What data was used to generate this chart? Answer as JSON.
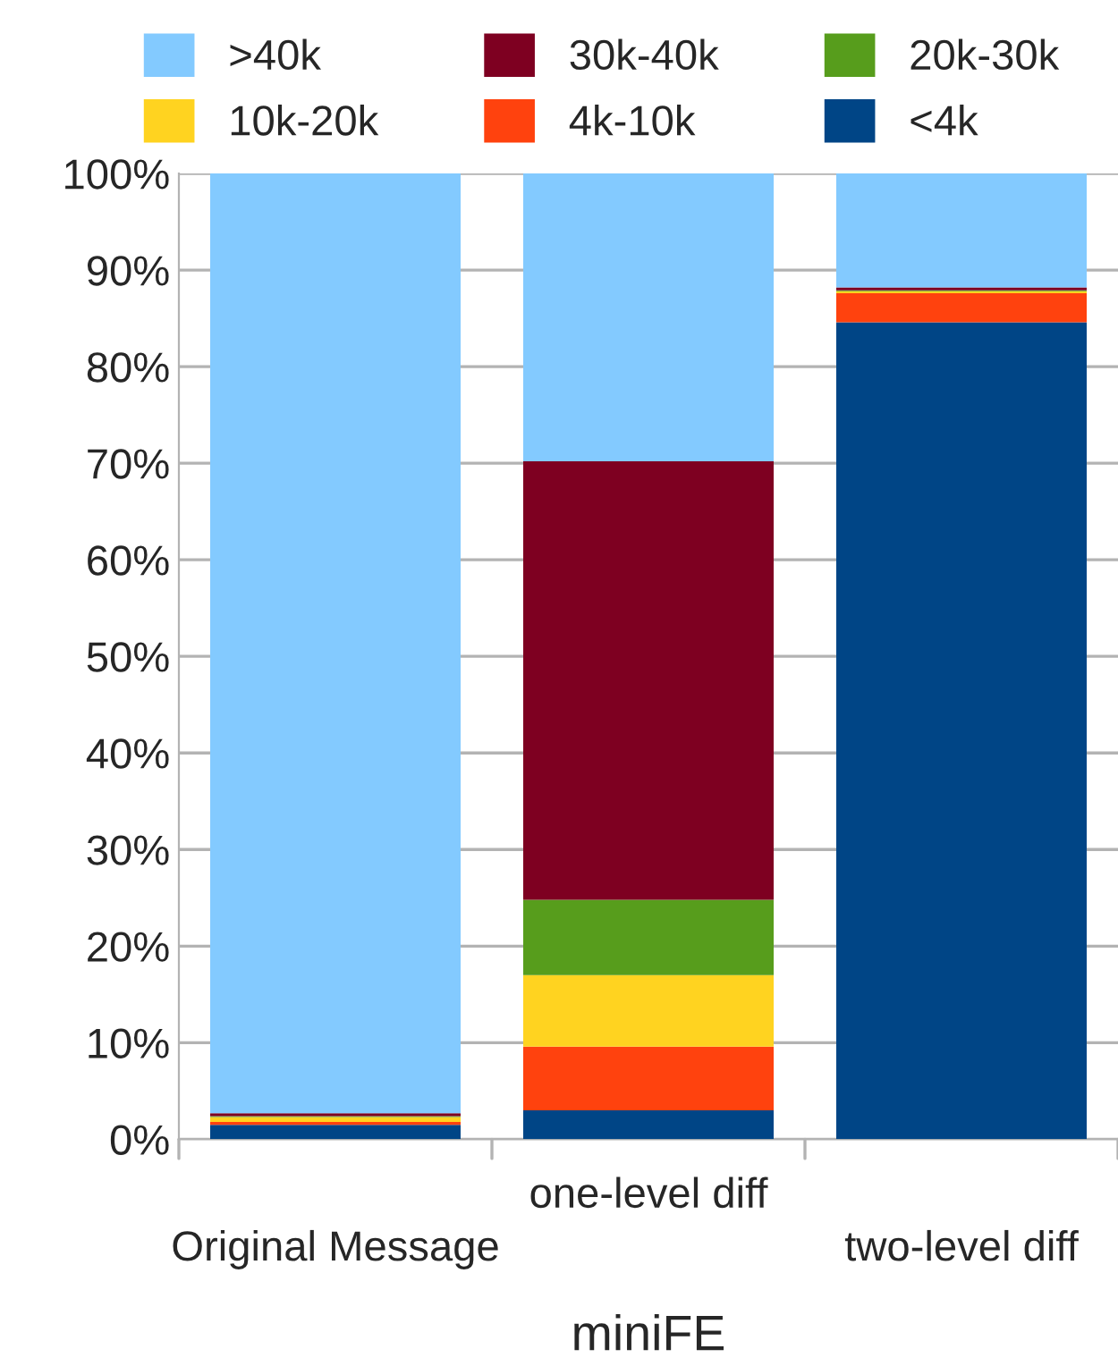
{
  "chart_data": {
    "type": "bar",
    "stacked": true,
    "xlabel": "miniFE",
    "categories": [
      "Original Message",
      "one-level diff",
      "two-level diff"
    ],
    "series": [
      {
        "name": "<4k",
        "color": "#004586",
        "values": [
          1.5,
          3.0,
          84.6
        ]
      },
      {
        "name": "4k-10k",
        "color": "#ff420e",
        "values": [
          0.3,
          6.6,
          3.0
        ]
      },
      {
        "name": "10k-20k",
        "color": "#ffd320",
        "values": [
          0.5,
          7.4,
          0.2
        ]
      },
      {
        "name": "20k-30k",
        "color": "#579d1c",
        "values": [
          0.1,
          7.8,
          0.1
        ]
      },
      {
        "name": "30k-40k",
        "color": "#7e0021",
        "values": [
          0.3,
          45.4,
          0.3
        ]
      },
      {
        "name": ">40k",
        "color": "#83caff",
        "values": [
          97.3,
          29.8,
          11.8
        ]
      }
    ],
    "ylim": [
      0,
      100
    ],
    "yticks": [
      {
        "value": 0,
        "label": "0%"
      },
      {
        "value": 10,
        "label": "10%"
      },
      {
        "value": 20,
        "label": "20%"
      },
      {
        "value": 30,
        "label": "30%"
      },
      {
        "value": 40,
        "label": "40%"
      },
      {
        "value": 50,
        "label": "50%"
      },
      {
        "value": 60,
        "label": "60%"
      },
      {
        "value": 70,
        "label": "70%"
      },
      {
        "value": 80,
        "label": "80%"
      },
      {
        "value": 90,
        "label": "90%"
      },
      {
        "value": 100,
        "label": "100%"
      }
    ],
    "grid": "y",
    "legend": "top"
  }
}
